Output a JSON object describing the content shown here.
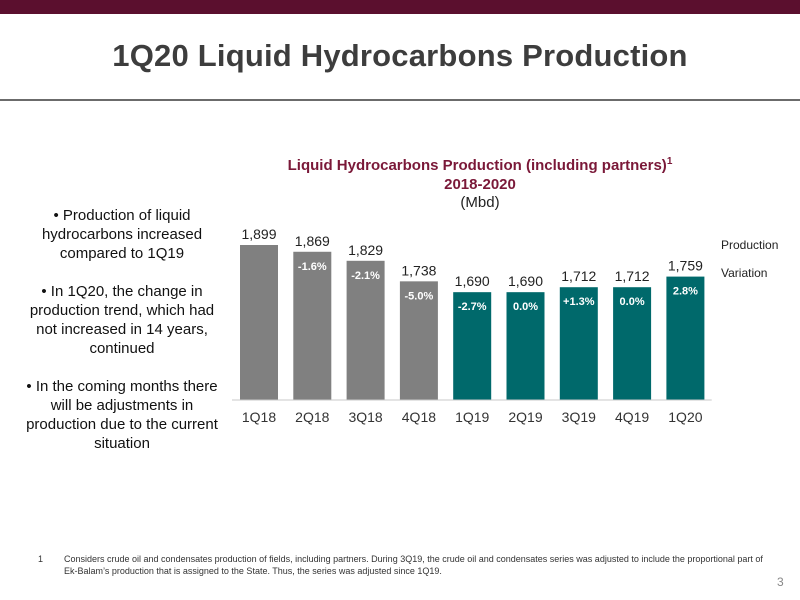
{
  "slide": {
    "title": "1Q20 Liquid Hydrocarbons Production",
    "page_number": "3",
    "bullets": [
      "• Production of liquid hydrocarbons increased compared to 1Q19",
      "• In 1Q20, the change in production trend, which had not increased in 14 years, continued",
      "• In the coming months there will be adjustments in production due to the current situation"
    ],
    "footnote_number": "1",
    "footnote_text": "Considers crude oil and condensates production of fields, including partners. During 3Q19, the crude oil and condensates series was adjusted to include the proportional part of Ek-Balam’s production that is assigned to the State. Thus, the series was adjusted since 1Q19.",
    "colors": {
      "header_bar": "#5b0f2e",
      "title_accent": "#7a1838"
    }
  },
  "chart_data": {
    "type": "bar",
    "title": "Liquid Hydrocarbons Production (including partners)",
    "title_superscript": "1",
    "subtitle": "2018-2020",
    "unit": "(Mbd)",
    "categories": [
      "1Q18",
      "2Q18",
      "3Q18",
      "4Q18",
      "1Q19",
      "2Q19",
      "3Q19",
      "4Q19",
      "1Q20"
    ],
    "values": [
      1899,
      1869,
      1829,
      1738,
      1690,
      1690,
      1712,
      1712,
      1759
    ],
    "value_labels": [
      "1,899",
      "1,869",
      "1,829",
      "1,738",
      "1,690",
      "1,690",
      "1,712",
      "1,712",
      "1,759"
    ],
    "variation_labels": [
      "",
      "-1.6%",
      "-2.1%",
      "-5.0%",
      "-2.7%",
      "0.0%",
      "+1.3%",
      "0.0%",
      "2.8%"
    ],
    "bar_colors": [
      "#808080",
      "#808080",
      "#808080",
      "#808080",
      "#00696b",
      "#00696b",
      "#00696b",
      "#00696b",
      "#00696b"
    ],
    "legend": [
      "Production",
      "Variation"
    ],
    "legend_placement": "right",
    "grid": false
  }
}
